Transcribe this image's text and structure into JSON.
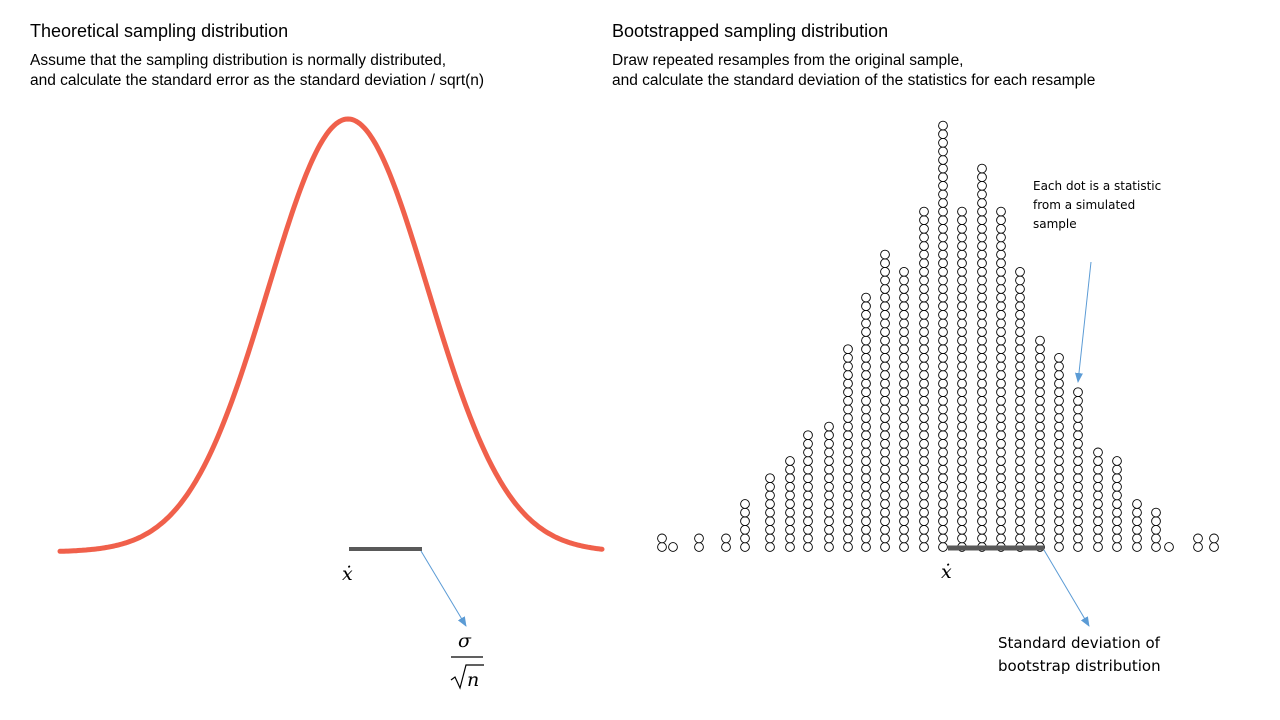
{
  "left_panel": {
    "title": "Theoretical sampling distribution",
    "description_line1": "Assume that the sampling distribution is normally distributed,",
    "description_line2": "and calculate the standard error as the standard deviation / sqrt(n)",
    "mean_symbol": "ẋ",
    "se_formula": {
      "numerator": "σ",
      "denominator_var": "n"
    },
    "curve_color": "#f0604b"
  },
  "right_panel": {
    "title": "Bootstrapped sampling distribution",
    "description_line1": "Draw repeated resamples from the original sample,",
    "description_line2": "and calculate the standard deviation of the statistics for each resample",
    "mean_symbol": "ẋ",
    "annotation_line1": "Each dot is a statistic",
    "annotation_line2": "from a simulated",
    "annotation_line3": "sample",
    "sd_label_line1": "Standard deviation of",
    "sd_label_line2": "bootstrap distribution",
    "dot_column_counts": [
      2,
      1,
      1,
      1,
      6,
      9,
      11,
      14,
      15,
      15,
      24,
      30,
      35,
      40,
      38,
      42,
      55,
      46,
      49,
      45,
      37,
      29,
      24,
      26,
      21,
      13,
      11,
      5,
      5,
      1,
      1,
      1
    ],
    "arrow_color": "#5b9bd5",
    "bar_color": "#595959"
  }
}
